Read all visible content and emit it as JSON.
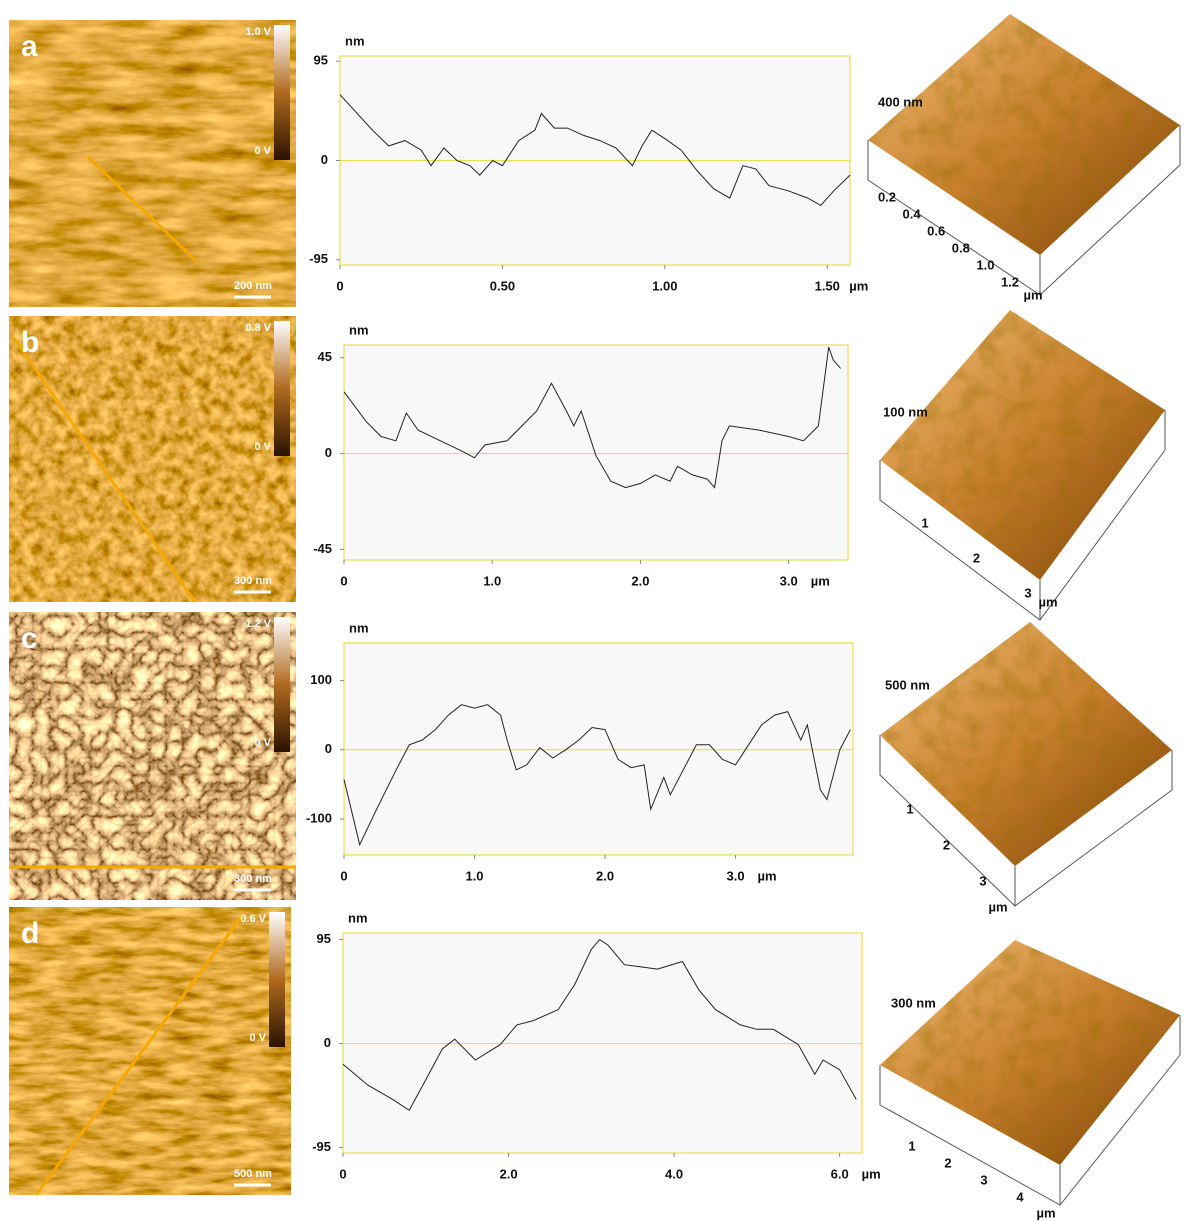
{
  "chart_data": [
    {
      "type": "line",
      "y_label": "nm",
      "x_unit": "µm",
      "xlim": [
        0,
        1.57
      ],
      "ylim": [
        -100,
        100
      ],
      "xticks": [
        0,
        {
          "value": 0.5,
          "label": "0.50"
        },
        {
          "value": 1,
          "label": "1.00"
        },
        {
          "value": 1.5,
          "label": "1.50"
        }
      ],
      "yticks": [
        -95,
        0,
        95
      ],
      "zero_line": true,
      "x": [
        0,
        0.1,
        0.15,
        0.2,
        0.25,
        0.28,
        0.32,
        0.36,
        0.4,
        0.43,
        0.47,
        0.5,
        0.55,
        0.6,
        0.62,
        0.66,
        0.7,
        0.75,
        0.8,
        0.85,
        0.9,
        0.93,
        0.96,
        1.0,
        1.05,
        1.1,
        1.15,
        1.2,
        1.24,
        1.28,
        1.32,
        1.38,
        1.44,
        1.48,
        1.52,
        1.57
      ],
      "series": [
        {
          "color": "#222222",
          "values": [
            63,
            29,
            14,
            19,
            10,
            -5,
            12,
            0,
            -5,
            -14,
            0,
            -5,
            19,
            29,
            45,
            31,
            31,
            24,
            19,
            12,
            -5,
            14,
            29,
            21,
            10,
            -10,
            -27,
            -36,
            -5,
            -8,
            -24,
            -29,
            -36,
            -43,
            -29,
            -14
          ]
        }
      ]
    },
    {
      "type": "line",
      "y_label": "nm",
      "x_unit": "µm",
      "xlim": [
        0,
        3.4
      ],
      "ylim": [
        -50,
        51
      ],
      "xticks": [
        0,
        {
          "value": 1,
          "label": "1.0"
        },
        {
          "value": 2,
          "label": "2.0"
        },
        {
          "value": 3,
          "label": "3.0"
        }
      ],
      "yticks": [
        -45,
        0,
        45
      ],
      "zero_line": true,
      "x": [
        0,
        0.15,
        0.25,
        0.35,
        0.42,
        0.5,
        0.65,
        0.8,
        0.88,
        0.95,
        1.1,
        1.2,
        1.3,
        1.4,
        1.5,
        1.55,
        1.6,
        1.7,
        1.8,
        1.9,
        2.0,
        2.1,
        2.2,
        2.25,
        2.35,
        2.45,
        2.5,
        2.55,
        2.6,
        2.8,
        3.0,
        3.1,
        3.2,
        3.27,
        3.3,
        3.35
      ],
      "series": [
        {
          "color": "#222222",
          "values": [
            29,
            15,
            8,
            6,
            19,
            11,
            6,
            1,
            -2,
            4,
            6,
            13,
            20,
            33,
            20,
            13,
            20,
            -1,
            -13,
            -16,
            -14,
            -10,
            -13,
            -6,
            -10,
            -12,
            -16,
            6,
            13,
            11,
            8,
            6,
            13,
            50,
            44,
            40
          ]
        }
      ]
    },
    {
      "type": "line",
      "y_label": "nm",
      "x_unit": "µm",
      "xlim": [
        0,
        3.9
      ],
      "ylim": [
        -152,
        154
      ],
      "xticks": [
        0,
        {
          "value": 1,
          "label": "1.0"
        },
        {
          "value": 2,
          "label": "2.0"
        },
        {
          "value": 3,
          "label": "3.0"
        }
      ],
      "yticks": [
        -100,
        0,
        100
      ],
      "zero_line": true,
      "x": [
        0,
        0.12,
        0.25,
        0.4,
        0.5,
        0.6,
        0.7,
        0.8,
        0.9,
        1.0,
        1.1,
        1.2,
        1.25,
        1.32,
        1.4,
        1.5,
        1.6,
        1.7,
        1.8,
        1.9,
        2.0,
        2.1,
        2.2,
        2.3,
        2.35,
        2.45,
        2.5,
        2.6,
        2.7,
        2.8,
        2.9,
        3.0,
        3.1,
        3.2,
        3.3,
        3.4,
        3.5,
        3.55,
        3.65,
        3.7,
        3.8,
        3.88
      ],
      "series": [
        {
          "color": "#222222",
          "values": [
            -43,
            -137,
            -86,
            -29,
            7,
            14,
            29,
            50,
            65,
            60,
            65,
            50,
            14,
            -29,
            -22,
            3,
            -12,
            0,
            14,
            32,
            29,
            -14,
            -26,
            -22,
            -86,
            -40,
            -65,
            -29,
            7,
            7,
            -14,
            -22,
            7,
            36,
            50,
            55,
            14,
            36,
            -58,
            -72,
            0,
            29
          ]
        }
      ]
    },
    {
      "type": "line",
      "y_label": "nm",
      "x_unit": "µm",
      "xlim": [
        0,
        6.27
      ],
      "ylim": [
        -100,
        101
      ],
      "xticks": [
        0,
        {
          "value": 2,
          "label": "2.0"
        },
        {
          "value": 4,
          "label": "4.0"
        },
        {
          "value": 6,
          "label": "6.0"
        }
      ],
      "yticks": [
        -95,
        0,
        95
      ],
      "zero_line": true,
      "x": [
        0,
        0.3,
        0.6,
        0.8,
        1.0,
        1.2,
        1.35,
        1.6,
        1.9,
        2.1,
        2.3,
        2.6,
        2.8,
        3.0,
        3.1,
        3.2,
        3.4,
        3.6,
        3.8,
        4.1,
        4.3,
        4.5,
        4.8,
        5.0,
        5.2,
        5.5,
        5.7,
        5.8,
        6.0,
        6.2
      ],
      "series": [
        {
          "color": "#222222",
          "values": [
            -19,
            -38,
            -51,
            -61,
            -33,
            -5,
            4,
            -15,
            -1,
            17,
            21,
            31,
            54,
            86,
            95,
            90,
            72,
            70,
            68,
            75,
            49,
            31,
            17,
            13,
            13,
            -1,
            -28,
            -15,
            -24,
            -51
          ]
        }
      ]
    }
  ],
  "panels": [
    {
      "label": "a",
      "colorbar_max": "1.0 V",
      "colorbar_min": "0 V",
      "scale_bar": "200 nm",
      "surface": {
        "z_label": "400 nm",
        "ticks": [
          "0.2",
          "0.4",
          "0.6",
          "0.8",
          "1.0",
          "1.2"
        ],
        "unit": "µm"
      }
    },
    {
      "label": "b",
      "colorbar_max": "0.8 V",
      "colorbar_min": "0 V",
      "scale_bar": "300 nm",
      "surface": {
        "z_label": "100 nm",
        "ticks": [
          "1",
          "2",
          "3"
        ],
        "unit": "µm"
      }
    },
    {
      "label": "c",
      "colorbar_max": "1.2 V",
      "colorbar_min": "0 V",
      "scale_bar": "300 nm",
      "surface": {
        "z_label": "500 nm",
        "ticks": [
          "1",
          "2",
          "3"
        ],
        "unit": "µm"
      }
    },
    {
      "label": "d",
      "colorbar_max": "0.6 V",
      "colorbar_min": "0 V",
      "scale_bar": "500 nm",
      "surface": {
        "z_label": "300 nm",
        "ticks": [
          "1",
          "2",
          "3",
          "4"
        ],
        "unit": "µm"
      }
    }
  ]
}
